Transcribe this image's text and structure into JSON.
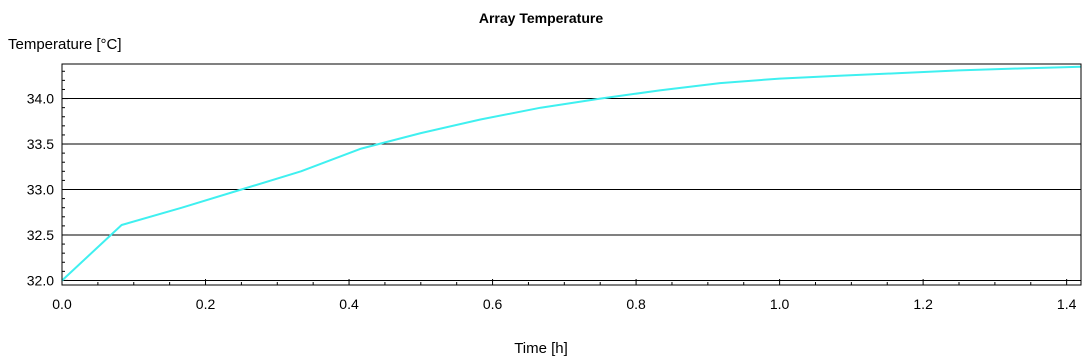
{
  "chart_data": {
    "type": "line",
    "title": "Array Temperature",
    "xlabel": "Time [h]",
    "ylabel": "Temperature [°C]",
    "xlim": [
      0.0,
      1.42
    ],
    "ylim": [
      31.95,
      34.38
    ],
    "xticks": [
      0.0,
      0.2,
      0.4,
      0.6,
      0.8,
      1.0,
      1.2,
      1.4
    ],
    "xtick_labels": [
      "0.0",
      "0.2",
      "0.4",
      "0.6",
      "0.8",
      "1.0",
      "1.2",
      "1.4"
    ],
    "yticks": [
      32.0,
      32.5,
      33.0,
      33.5,
      34.0
    ],
    "ytick_labels": [
      "32.0",
      "32.5",
      "33.0",
      "33.5",
      "34.0"
    ],
    "grid": "horizontal",
    "series": [
      {
        "color": "#3ff0f0",
        "x": [
          0.0,
          0.083,
          0.167,
          0.25,
          0.333,
          0.417,
          0.5,
          0.583,
          0.667,
          0.75,
          0.833,
          0.917,
          1.0,
          1.083,
          1.167,
          1.25,
          1.333,
          1.42
        ],
        "y": [
          32.0,
          32.61,
          32.8,
          33.0,
          33.2,
          33.45,
          33.62,
          33.77,
          33.9,
          34.0,
          34.09,
          34.17,
          34.22,
          34.25,
          34.28,
          34.31,
          34.33,
          34.35
        ]
      }
    ]
  }
}
